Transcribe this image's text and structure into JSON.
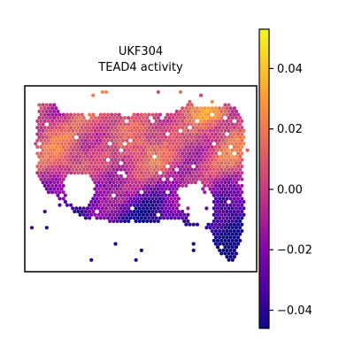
{
  "chart_data": {
    "type": "scatter",
    "subtype": "spatial-hex-spots",
    "title": "UKF304",
    "subtitle": "TEAD4 activity",
    "xlabel": "",
    "ylabel": "",
    "axes_ticks_visible": false,
    "grid": false,
    "colormap": "plasma",
    "colorbar": {
      "position": "right",
      "range": [
        -0.046,
        0.053
      ],
      "ticks": [
        0.04,
        0.02,
        0.0,
        -0.02,
        -0.04
      ],
      "tick_labels": [
        "0.04",
        "0.02",
        "0.00",
        "−0.02",
        "−0.04"
      ]
    },
    "value_range": [
      -0.046,
      0.053
    ]
  }
}
